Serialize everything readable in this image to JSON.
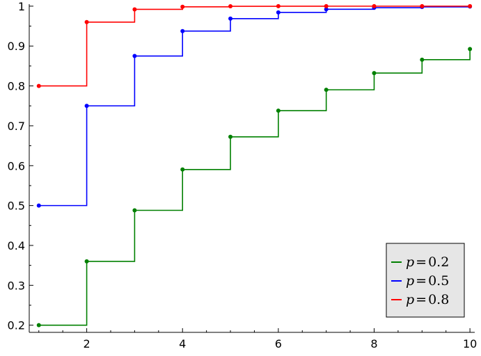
{
  "chart_data": {
    "type": "line",
    "step": true,
    "x": [
      1,
      2,
      3,
      4,
      5,
      6,
      7,
      8,
      9,
      10
    ],
    "series": [
      {
        "name_var": "p",
        "name_op": "=",
        "name_value": "0.2",
        "color": "#008000",
        "values": [
          0.2,
          0.36,
          0.488,
          0.5904,
          0.6723,
          0.7379,
          0.7903,
          0.8322,
          0.8658,
          0.8926
        ]
      },
      {
        "name_var": "p",
        "name_op": "=",
        "name_value": "0.5",
        "color": "#0000ff",
        "values": [
          0.5,
          0.75,
          0.875,
          0.9375,
          0.96875,
          0.984375,
          0.9921875,
          0.99609375,
          0.998046875,
          0.9990234375
        ]
      },
      {
        "name_var": "p",
        "name_op": "=",
        "name_value": "0.8",
        "color": "#ff0000",
        "values": [
          0.8,
          0.96,
          0.992,
          0.9984,
          0.99968,
          0.999936,
          0.9999872,
          0.99999744,
          0.999999488,
          0.9999998976
        ]
      }
    ],
    "xlim": [
      0.8,
      10.1
    ],
    "ylim": [
      0.182,
      1.005
    ],
    "x_ticks": [
      2,
      4,
      6,
      8,
      10
    ],
    "x_tick_labels": [
      "2",
      "4",
      "6",
      "8",
      "10"
    ],
    "y_ticks": [
      0.2,
      0.3,
      0.4,
      0.5,
      0.6,
      0.7,
      0.8,
      0.9,
      1.0
    ],
    "y_tick_labels": [
      "0.2",
      "0.3",
      "0.4",
      "0.5",
      "0.6",
      "0.7",
      "0.8",
      "0.9",
      "1"
    ],
    "grid": false,
    "legend_position": "bottom-right",
    "legend_background": "#e6e6e6",
    "axis_color": "#000000",
    "title": "",
    "xlabel": "",
    "ylabel": ""
  }
}
